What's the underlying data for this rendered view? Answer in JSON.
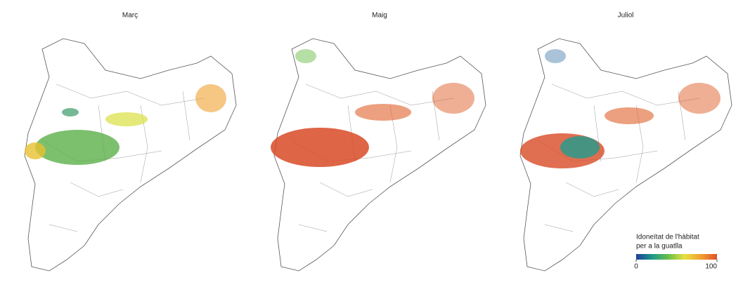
{
  "panels": [
    {
      "title": "Març"
    },
    {
      "title": "Maig"
    },
    {
      "title": "Juliol"
    }
  ],
  "legend": {
    "title_lines": [
      "Idoneïtat de l'hàbitat",
      "per a la guatlla"
    ],
    "ticks": [
      0,
      100
    ],
    "range": [
      0,
      100
    ],
    "colors": [
      "#1f3f9a",
      "#1e9a8a",
      "#6cc04a",
      "#e8e040",
      "#f0a030",
      "#e0502a"
    ]
  }
}
